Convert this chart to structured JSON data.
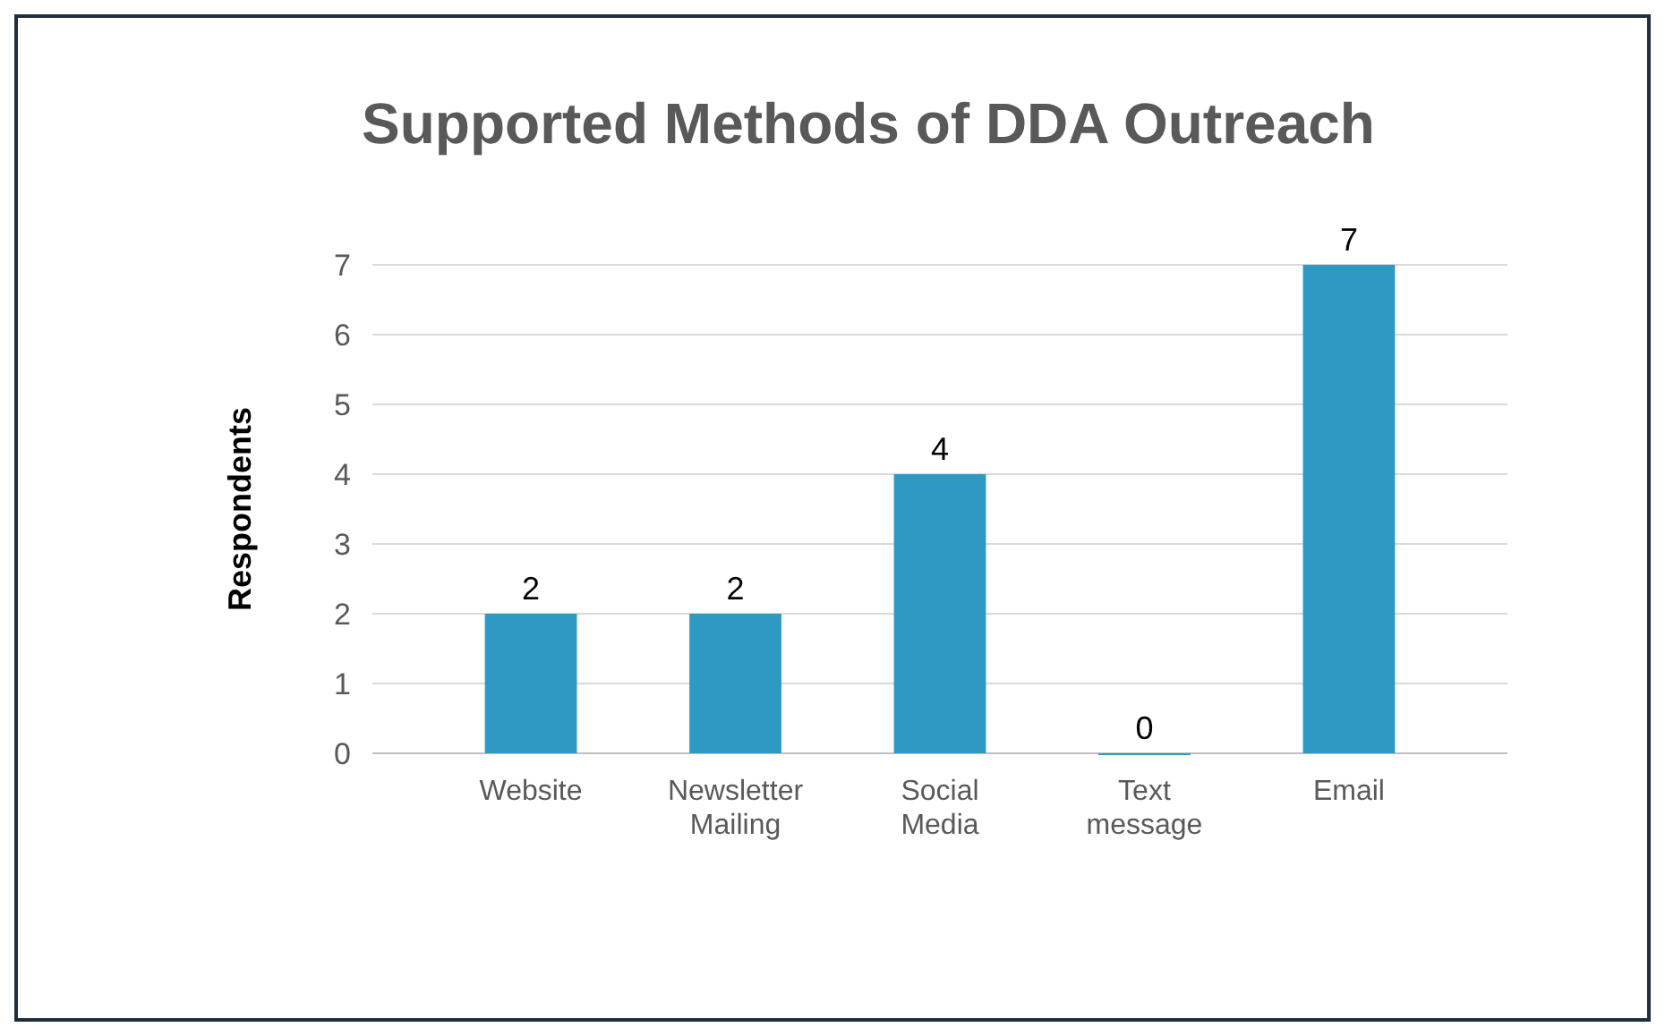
{
  "chart_data": {
    "type": "bar",
    "title": "Supported Methods of DDA Outreach",
    "ylabel": "Respondents",
    "categories": [
      "Website",
      "Newsletter Mailing",
      "Social Media",
      "Text message",
      "Email"
    ],
    "values": [
      2,
      2,
      4,
      0,
      7
    ],
    "color": "#2e9ac4",
    "ylim": [
      0,
      7
    ],
    "yticks": [
      0,
      1,
      2,
      3,
      4,
      5,
      6,
      7
    ],
    "grid": true,
    "data_labels": true
  }
}
